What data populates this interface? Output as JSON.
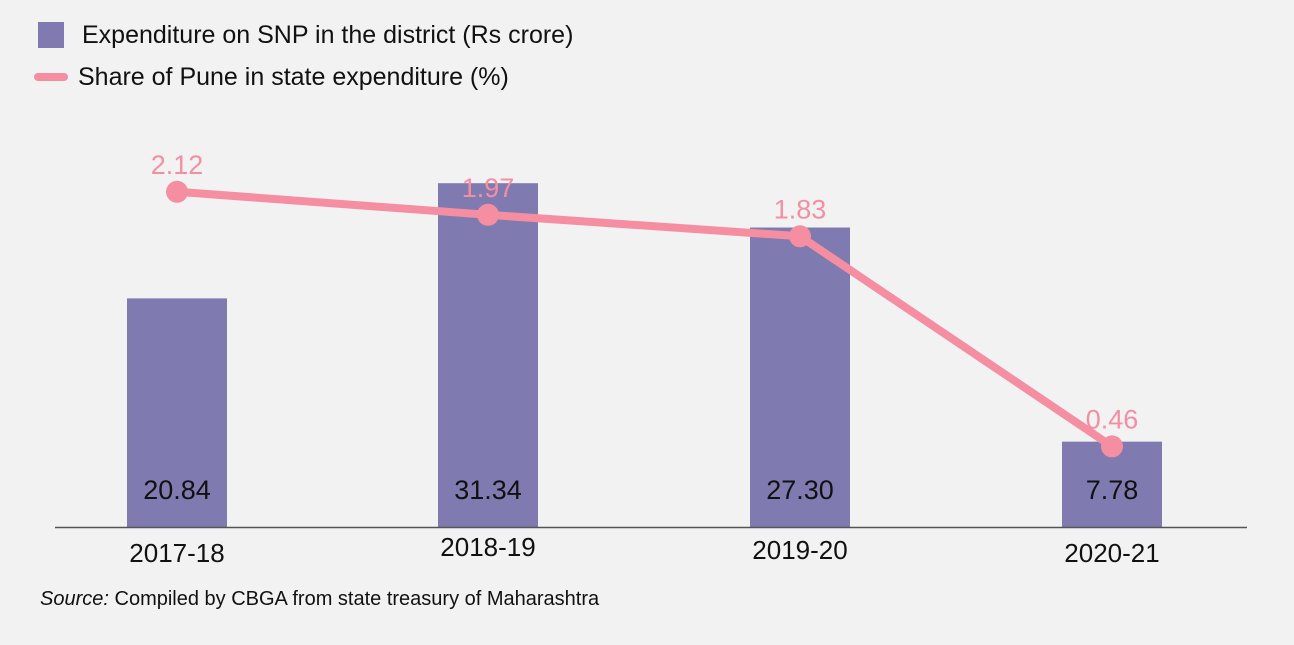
{
  "legend": {
    "bar_label": "Expenditure on SNP in the district (Rs crore)",
    "line_label": "Share of Pune in state expenditure (%)"
  },
  "source": {
    "label": "Source:",
    "text": "Compiled by CBGA from state treasury of Maharashtra"
  },
  "colors": {
    "bar": "#7f7bb0",
    "line": "#f68ea2",
    "axis": "#555555"
  },
  "chart_data": {
    "type": "bar",
    "categories": [
      "2017-18",
      "2018-19",
      "2019-20",
      "2020-21"
    ],
    "series": [
      {
        "name": "Expenditure on SNP in the district (Rs crore)",
        "type": "bar",
        "values": [
          20.84,
          31.34,
          27.3,
          7.78
        ],
        "labels": [
          "20.84",
          "31.34",
          "27.30",
          "7.78"
        ]
      },
      {
        "name": "Share of Pune in state expenditure (%)",
        "type": "line",
        "values": [
          2.12,
          1.97,
          1.83,
          0.46
        ],
        "labels": [
          "2.12",
          "1.97",
          "1.83",
          "0.46"
        ]
      }
    ],
    "legend_position": "top-left",
    "grid": false
  }
}
